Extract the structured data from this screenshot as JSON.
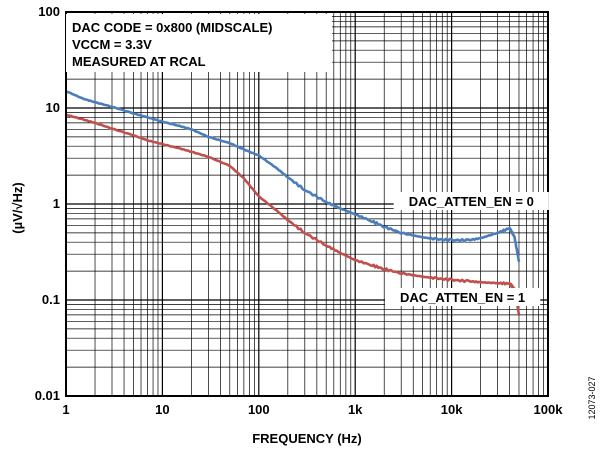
{
  "chart_data": {
    "type": "line",
    "xlabel": "FREQUENCY (Hz)",
    "ylabel": "(µV/√Hz)",
    "x_scale": "log",
    "y_scale": "log",
    "xlim": [
      1,
      100000
    ],
    "ylim": [
      0.01,
      100
    ],
    "grid": true,
    "x_ticks": [
      {
        "value": 1,
        "label": "1"
      },
      {
        "value": 10,
        "label": "10"
      },
      {
        "value": 100,
        "label": "100"
      },
      {
        "value": 1000,
        "label": "1k"
      },
      {
        "value": 10000,
        "label": "10k"
      },
      {
        "value": 100000,
        "label": "100k"
      }
    ],
    "y_ticks": [
      {
        "value": 0.01,
        "label": "0.01"
      },
      {
        "value": 0.1,
        "label": "0.1"
      },
      {
        "value": 1,
        "label": "1"
      },
      {
        "value": 10,
        "label": "10"
      },
      {
        "value": 100,
        "label": "100"
      }
    ],
    "annotation_lines": [
      "DAC CODE = 0x800 (MIDSCALE)",
      "VCCM = 3.3V",
      "MEASURED AT RCAL"
    ],
    "series": [
      {
        "name": "DAC_ATTEN_EN = 0",
        "color": "#4a7ebb",
        "x": [
          1,
          1.5,
          2,
          3,
          5,
          7,
          10,
          15,
          20,
          30,
          50,
          70,
          100,
          150,
          200,
          300,
          500,
          700,
          1000,
          1500,
          2000,
          3000,
          5000,
          7000,
          10000,
          15000,
          20000,
          30000,
          40000,
          45000,
          50000
        ],
        "y": [
          15,
          12.5,
          11.5,
          10.3,
          8.8,
          8.0,
          7.2,
          6.5,
          6.0,
          5.0,
          4.3,
          3.7,
          3.2,
          2.4,
          1.9,
          1.4,
          1.05,
          0.9,
          0.78,
          0.66,
          0.58,
          0.5,
          0.45,
          0.43,
          0.42,
          0.42,
          0.44,
          0.5,
          0.56,
          0.45,
          0.25
        ]
      },
      {
        "name": "DAC_ATTEN_EN = 1",
        "color": "#c0504d",
        "x": [
          1,
          1.5,
          2,
          3,
          5,
          7,
          10,
          15,
          20,
          30,
          50,
          70,
          100,
          150,
          200,
          300,
          500,
          700,
          1000,
          1500,
          2000,
          3000,
          5000,
          7000,
          10000,
          15000,
          20000,
          30000,
          40000,
          45000,
          50000
        ],
        "y": [
          8.5,
          7.6,
          7.0,
          6.1,
          5.2,
          4.6,
          4.2,
          3.8,
          3.5,
          3.1,
          2.5,
          1.85,
          1.2,
          0.87,
          0.68,
          0.5,
          0.37,
          0.31,
          0.26,
          0.23,
          0.21,
          0.19,
          0.175,
          0.168,
          0.162,
          0.157,
          0.153,
          0.15,
          0.148,
          0.13,
          0.07
        ]
      }
    ],
    "series_labels": [
      {
        "text": "DAC_ATTEN_EN = 0",
        "x": 16000,
        "y": 1.0
      },
      {
        "text": "DAC_ATTEN_EN = 1",
        "x": 13000,
        "y": 0.1
      }
    ]
  },
  "figure_id": "12073-027"
}
